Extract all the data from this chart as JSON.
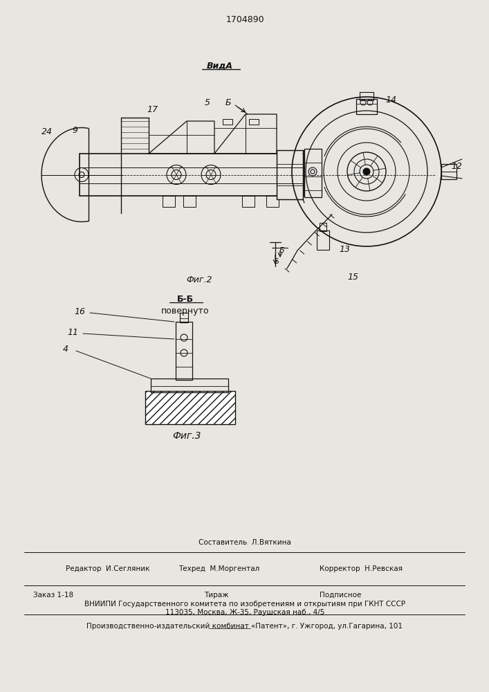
{
  "patent_number": "1704890",
  "bg_color": "#e8e6e0",
  "line_color": "#111111",
  "fig2_label": "Фиг.2",
  "fig3_label": "Фиг.3",
  "vid_a_label": "ВидА",
  "bb_label": "Б-Б",
  "bb_sub": "повернуто",
  "footer_line1": "Составитель  Л.Вяткина",
  "footer_line2_left": "Редактор  И.Сегляник",
  "footer_line2_mid": "Техред  М.Моргентал",
  "footer_line2_right": "Корректор  Н.Ревская",
  "footer_line3_left": "Заказ 1-18",
  "footer_line3_mid": "Тираж",
  "footer_line3_right": "Подписное",
  "footer_line4": "ВНИИПИ Государственного комитета по изобретениям и открытиям при ГКНТ СССР",
  "footer_line5": "113035, Москва, Ж-35, Раушская наб., 4/5",
  "footer_line6": "Производственно-издательский комбинат «Патент», г. Ужгород, ул.Гагарина, 101"
}
